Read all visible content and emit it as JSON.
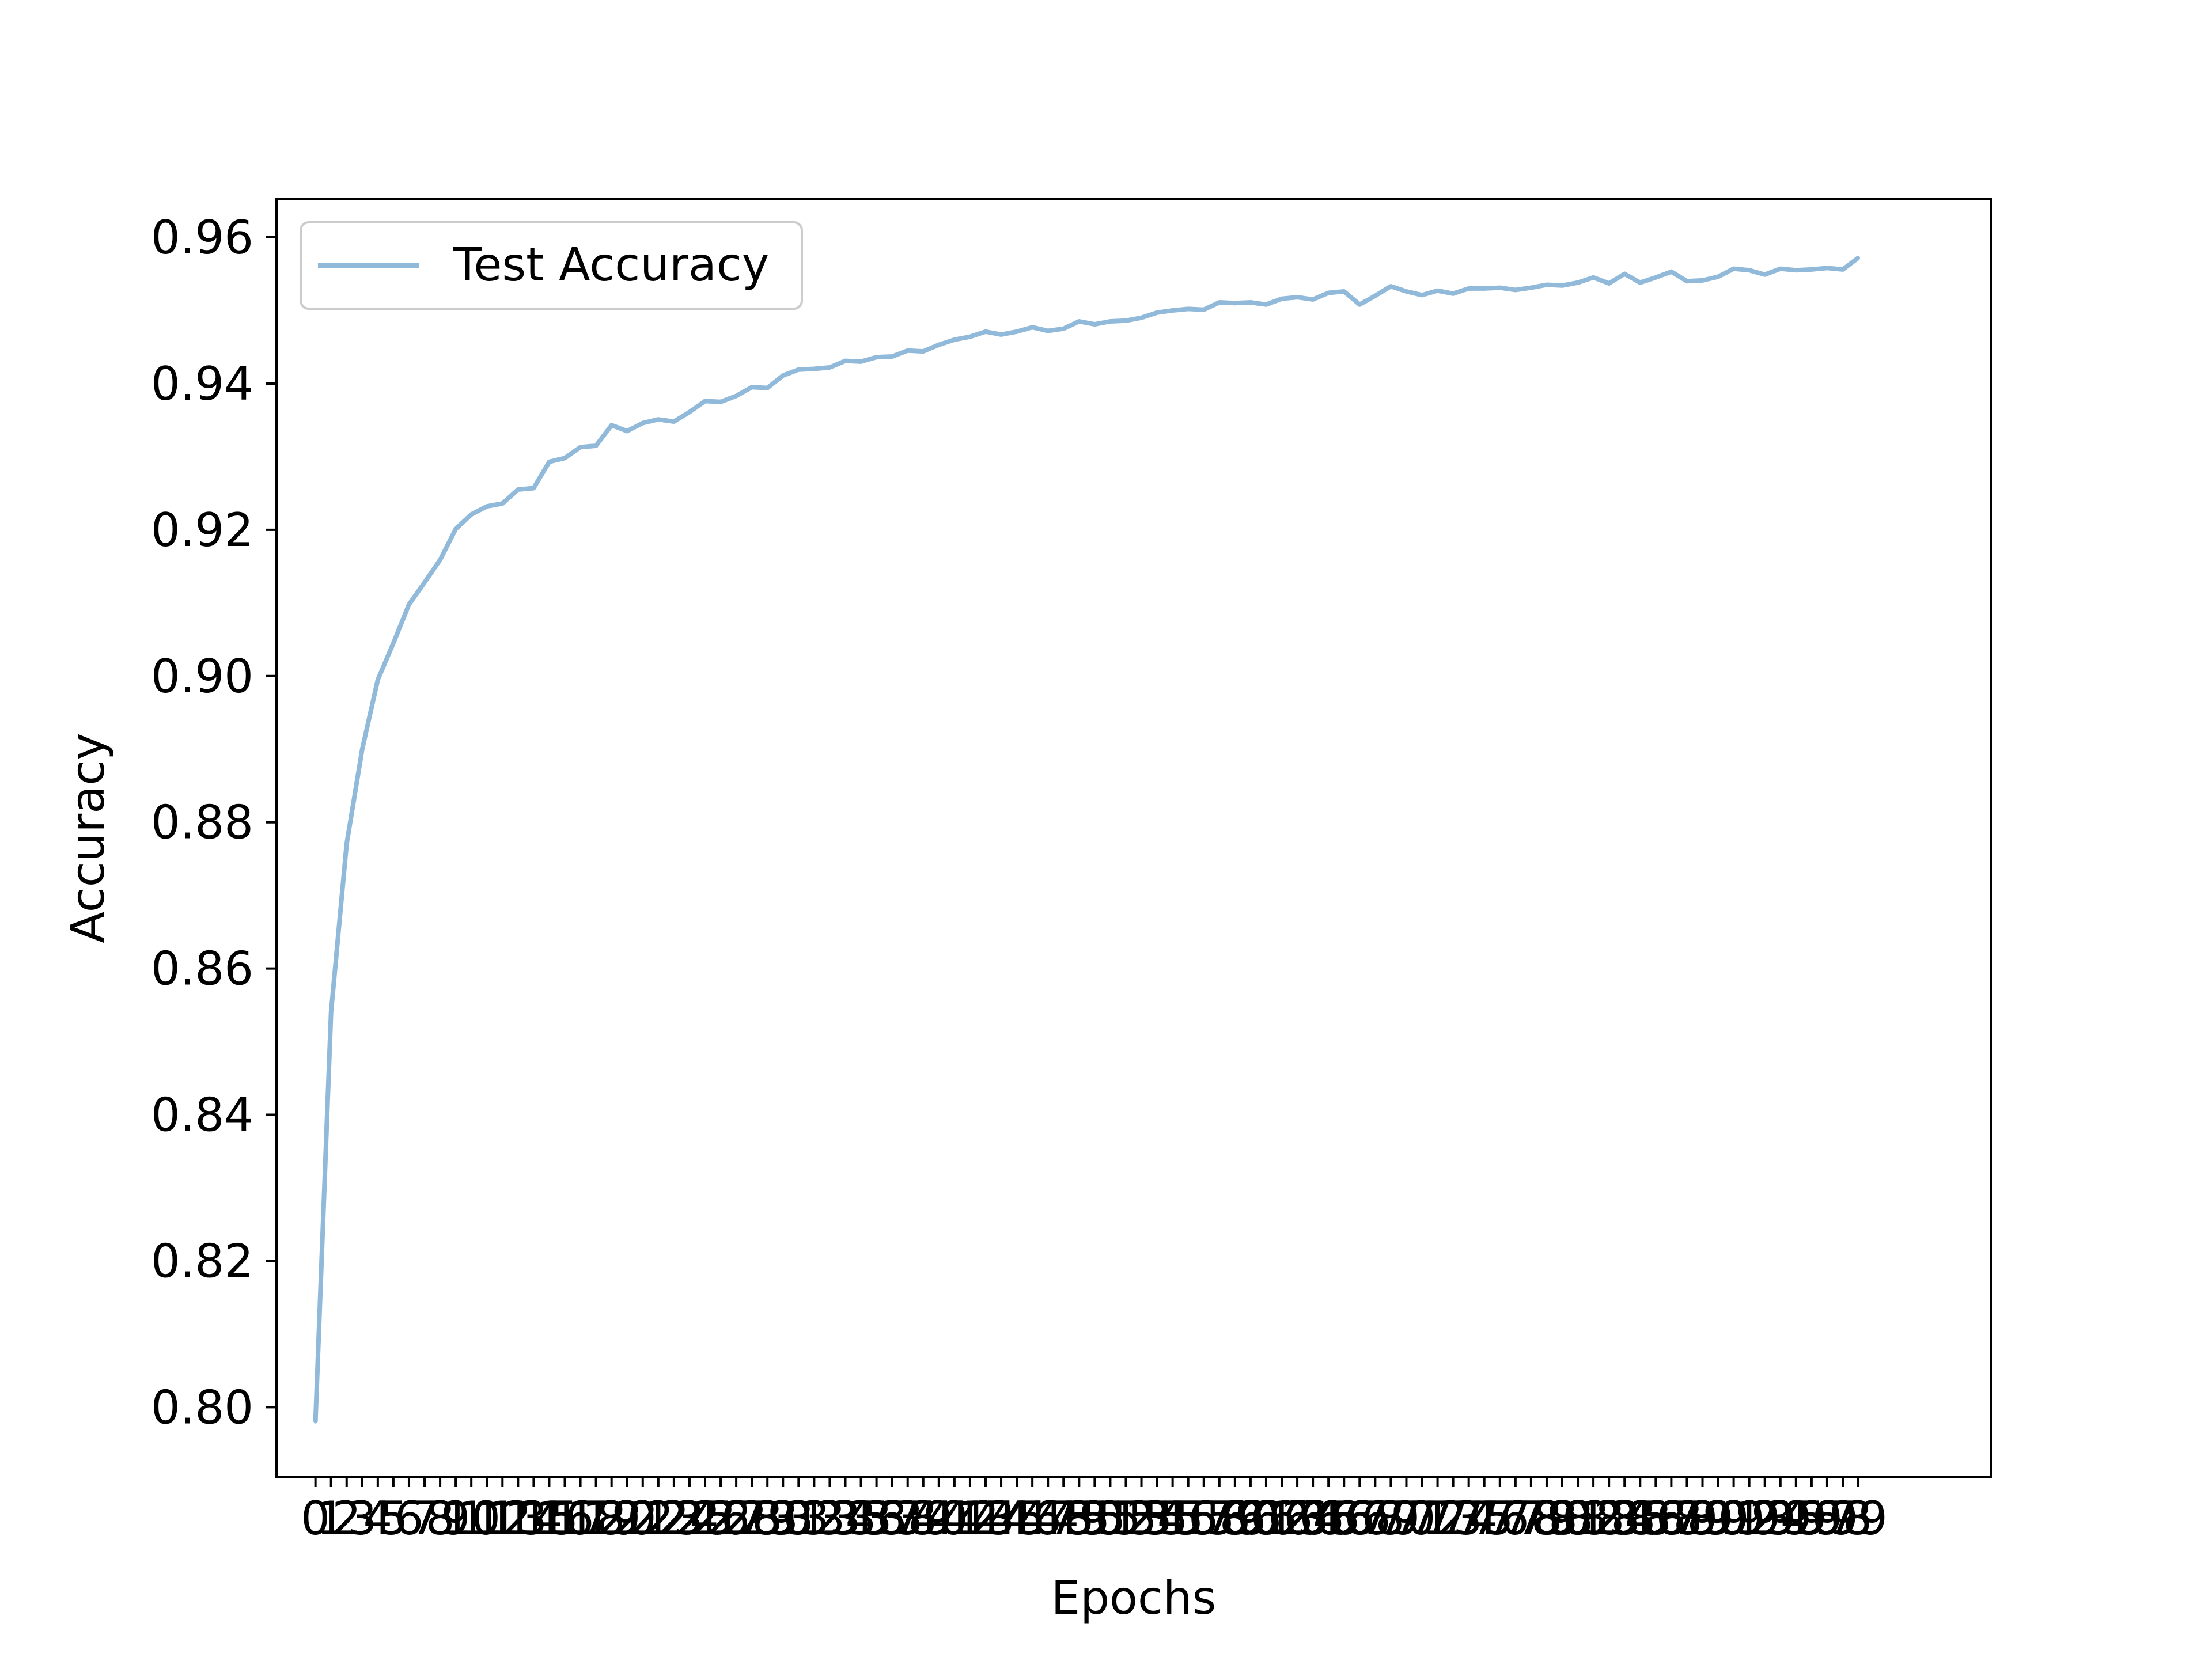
{
  "chart_data": {
    "type": "line",
    "title": "",
    "xlabel": "Epochs",
    "ylabel": "Accuracy",
    "xlim": [
      -2.5,
      107.5
    ],
    "ylim": [
      0.7905,
      0.9652
    ],
    "y_ticks": [
      0.8,
      0.82,
      0.84,
      0.86,
      0.88,
      0.9,
      0.92,
      0.94,
      0.96
    ],
    "y_tick_labels": [
      "0.80",
      "0.82",
      "0.84",
      "0.86",
      "0.88",
      "0.90",
      "0.92",
      "0.94",
      "0.96"
    ],
    "x_tick_labels": [
      "0",
      "1",
      "2",
      "3",
      "4",
      "5",
      "6",
      "7",
      "8",
      "9",
      "10",
      "11",
      "12",
      "13",
      "14",
      "15",
      "16",
      "17",
      "18",
      "19",
      "20",
      "21",
      "22",
      "23",
      "24",
      "25",
      "26",
      "27",
      "28",
      "29",
      "30",
      "31",
      "32",
      "33",
      "34",
      "35",
      "36",
      "37",
      "38",
      "39",
      "40",
      "41",
      "42",
      "43",
      "44",
      "45",
      "46",
      "47",
      "48",
      "49",
      "50",
      "51",
      "52",
      "53",
      "54",
      "55",
      "56",
      "57",
      "58",
      "59",
      "60",
      "61",
      "62",
      "63",
      "64",
      "65",
      "66",
      "67",
      "68",
      "69",
      "70",
      "71",
      "72",
      "73",
      "74",
      "75",
      "76",
      "77",
      "78",
      "79",
      "80",
      "81",
      "82",
      "83",
      "84",
      "85",
      "86",
      "87",
      "88",
      "89",
      "90",
      "91",
      "92",
      "93",
      "94",
      "95",
      "96",
      "97",
      "98",
      "99"
    ],
    "legend_position": "top-left",
    "grid": false,
    "series": [
      {
        "name": "Test Accuracy",
        "color": "#91b9d9",
        "x": [
          0,
          1,
          2,
          3,
          4,
          5,
          6,
          7,
          8,
          9,
          10,
          11,
          12,
          13,
          14,
          15,
          16,
          17,
          18,
          19,
          20,
          21,
          22,
          23,
          24,
          25,
          26,
          27,
          28,
          29,
          30,
          31,
          32,
          33,
          34,
          35,
          36,
          37,
          38,
          39,
          40,
          41,
          42,
          43,
          44,
          45,
          46,
          47,
          48,
          49,
          50,
          51,
          52,
          53,
          54,
          55,
          56,
          57,
          58,
          59,
          60,
          61,
          62,
          63,
          64,
          65,
          66,
          67,
          68,
          69,
          70,
          71,
          72,
          73,
          74,
          75,
          76,
          77,
          78,
          79,
          80,
          81,
          82,
          83,
          84,
          85,
          86,
          87,
          88,
          89,
          90,
          91,
          92,
          93,
          94,
          95,
          96,
          97,
          98,
          99
        ],
        "values": [
          0.798,
          0.854,
          0.877,
          0.89,
          0.8995,
          0.9045,
          0.9098,
          0.9128,
          0.9159,
          0.9201,
          0.9221,
          0.9232,
          0.9236,
          0.9255,
          0.9257,
          0.9293,
          0.9298,
          0.9313,
          0.9315,
          0.9343,
          0.9335,
          0.9346,
          0.9351,
          0.9348,
          0.9361,
          0.9376,
          0.9375,
          0.9383,
          0.9395,
          0.9394,
          0.9411,
          0.9419,
          0.942,
          0.9422,
          0.9431,
          0.943,
          0.9436,
          0.9437,
          0.9445,
          0.9444,
          0.9453,
          0.946,
          0.9464,
          0.9471,
          0.9467,
          0.9471,
          0.9477,
          0.9472,
          0.9475,
          0.9485,
          0.9481,
          0.9485,
          0.9486,
          0.949,
          0.9497,
          0.95,
          0.9502,
          0.9501,
          0.9511,
          0.951,
          0.9511,
          0.9508,
          0.9516,
          0.9518,
          0.9515,
          0.9524,
          0.9526,
          0.9508,
          0.952,
          0.9533,
          0.9526,
          0.9521,
          0.9527,
          0.9523,
          0.953,
          0.953,
          0.9531,
          0.9528,
          0.9531,
          0.9535,
          0.9534,
          0.9538,
          0.9545,
          0.9537,
          0.955,
          0.9538,
          0.9545,
          0.9553,
          0.954,
          0.9541,
          0.9546,
          0.9557,
          0.9555,
          0.9549,
          0.9557,
          0.9555,
          0.9556,
          0.9558,
          0.9556,
          0.9572
        ]
      }
    ]
  }
}
